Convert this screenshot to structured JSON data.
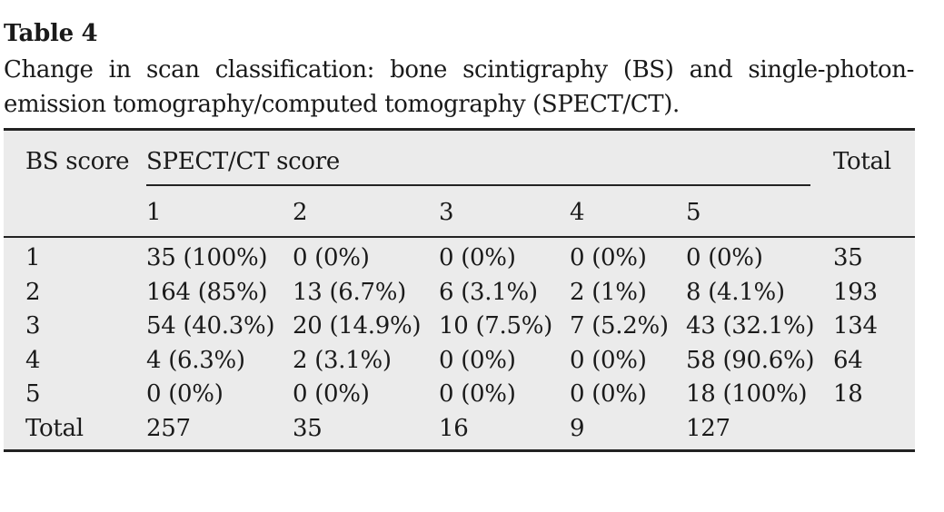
{
  "caption": {
    "label": "Table 4",
    "text": "Change in scan classification: bone scintigraphy (BS) and single-photon-emission tomography/computed tomography (SPECT/CT)."
  },
  "table": {
    "row_header": "BS score",
    "group_header": "SPECT/CT score",
    "total_header": "Total",
    "columns": [
      "1",
      "2",
      "3",
      "4",
      "5"
    ],
    "rows": [
      {
        "label": "1",
        "cells": [
          "35 (100%)",
          "0 (0%)",
          "0 (0%)",
          "0 (0%)",
          "0 (0%)"
        ],
        "total": "35"
      },
      {
        "label": "2",
        "cells": [
          "164 (85%)",
          "13 (6.7%)",
          "6 (3.1%)",
          "2 (1%)",
          "8 (4.1%)"
        ],
        "total": "193"
      },
      {
        "label": "3",
        "cells": [
          "54 (40.3%)",
          "20 (14.9%)",
          "10 (7.5%)",
          "7 (5.2%)",
          "43 (32.1%)"
        ],
        "total": "134"
      },
      {
        "label": "4",
        "cells": [
          "4 (6.3%)",
          "2 (3.1%)",
          "0 (0%)",
          "0 (0%)",
          "58 (90.6%)"
        ],
        "total": "64"
      },
      {
        "label": "5",
        "cells": [
          "0 (0%)",
          "0 (0%)",
          "0 (0%)",
          "0 (0%)",
          "18 (100%)"
        ],
        "total": "18"
      },
      {
        "label": "Total",
        "cells": [
          "257",
          "35",
          "16",
          "9",
          "127"
        ],
        "total": ""
      }
    ]
  }
}
